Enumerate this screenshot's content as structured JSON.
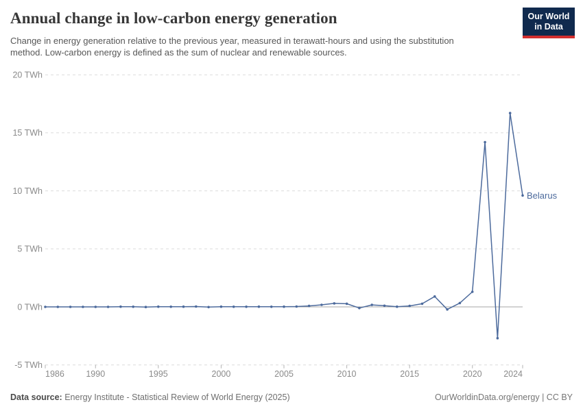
{
  "header": {
    "title": "Annual change in low-carbon energy generation",
    "subtitle": "Change in energy generation relative to the previous year, measured in terawatt-hours and using the substitution method. Low-carbon energy is defined as the sum of nuclear and renewable sources.",
    "logo": {
      "line1": "Our World",
      "line2": "in Data"
    }
  },
  "chart_data": {
    "type": "line",
    "title": "Annual change in low-carbon energy generation",
    "unit": "TWh",
    "x": [
      1986,
      1987,
      1988,
      1989,
      1990,
      1991,
      1992,
      1993,
      1994,
      1995,
      1996,
      1997,
      1998,
      1999,
      2000,
      2001,
      2002,
      2003,
      2004,
      2005,
      2006,
      2007,
      2008,
      2009,
      2010,
      2011,
      2012,
      2013,
      2014,
      2015,
      2016,
      2017,
      2018,
      2019,
      2020,
      2021,
      2022,
      2023,
      2024
    ],
    "series": [
      {
        "name": "Belarus",
        "values": [
          0,
          0,
          0,
          0,
          0,
          0,
          0.02,
          0.01,
          -0.01,
          0.02,
          0.01,
          0.02,
          0.03,
          -0.02,
          0.02,
          0.01,
          0.01,
          0.02,
          0.01,
          0.02,
          0.03,
          0.08,
          0.18,
          0.3,
          0.27,
          -0.1,
          0.17,
          0.1,
          0.02,
          0.08,
          0.27,
          0.9,
          -0.22,
          0.33,
          1.3,
          14.2,
          -2.7,
          16.7,
          9.6
        ]
      }
    ],
    "xlabel": "",
    "ylabel": "",
    "xlim": [
      1986,
      2024
    ],
    "ylim": [
      -5,
      20
    ],
    "yticks": [
      {
        "value": 20,
        "label": "20 TWh"
      },
      {
        "value": 15,
        "label": "15 TWh"
      },
      {
        "value": 10,
        "label": "10 TWh"
      },
      {
        "value": 5,
        "label": "5 TWh"
      },
      {
        "value": 0,
        "label": "0 TWh"
      },
      {
        "value": -5,
        "label": "-5 TWh"
      }
    ],
    "xticks": [
      {
        "value": 1986,
        "label": "1986"
      },
      {
        "value": 1990,
        "label": "1990"
      },
      {
        "value": 1995,
        "label": "1995"
      },
      {
        "value": 2000,
        "label": "2000"
      },
      {
        "value": 2005,
        "label": "2005"
      },
      {
        "value": 2010,
        "label": "2010"
      },
      {
        "value": 2015,
        "label": "2015"
      },
      {
        "value": 2020,
        "label": "2020"
      },
      {
        "value": 2024,
        "label": "2024"
      }
    ],
    "grid": "horizontal-dashed",
    "legend_position": "end-of-line"
  },
  "colors": {
    "line": "#4C6A9C",
    "gridline": "#DBDBDB",
    "zero_line": "#A5A5A5",
    "tick_mark": "#B3B3B3",
    "tick_text": "#8A8A8A",
    "entity_label": "#4C6A9C"
  },
  "footer": {
    "source_label": "Data source:",
    "source_text": "Energy Institute - Statistical Review of World Energy (2025)",
    "credit": "OurWorldinData.org/energy | CC BY"
  }
}
